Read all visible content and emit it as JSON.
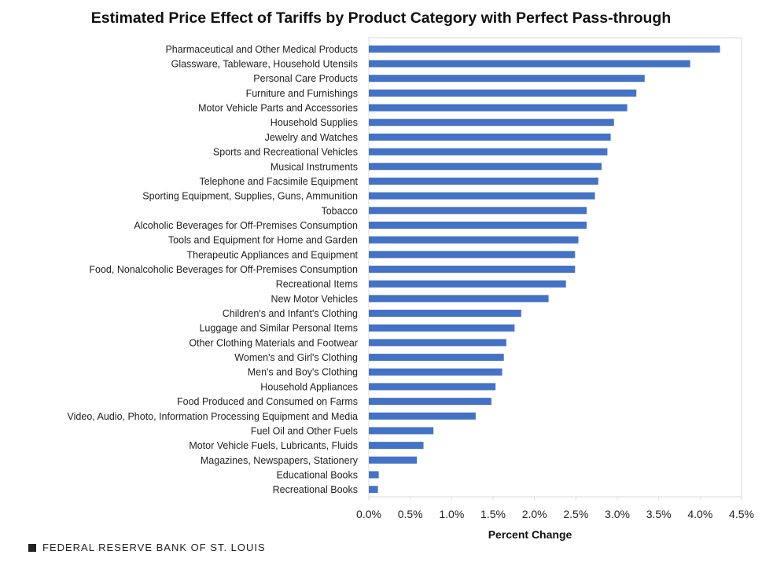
{
  "chart_data": {
    "type": "bar",
    "orientation": "horizontal",
    "title": "Estimated Price Effect of Tariffs by Product Category with Perfect Pass-through",
    "xlabel": "Percent Change",
    "ylabel": "",
    "xlim": [
      0,
      4.5
    ],
    "xticks": [
      "0.0%",
      "0.5%",
      "1.0%",
      "1.5%",
      "2.0%",
      "2.5%",
      "3.0%",
      "3.5%",
      "4.0%",
      "4.5%"
    ],
    "bar_color": "#4472C4",
    "categories": [
      "Pharmaceutical and Other Medical Products",
      "Glassware, Tableware, Household Utensils",
      "Personal Care Products",
      "Furniture and Furnishings",
      "Motor Vehicle Parts and Accessories",
      "Household Supplies",
      "Jewelry and Watches",
      "Sports and Recreational Vehicles",
      "Musical Instruments",
      "Telephone and Facsimile Equipment",
      "Sporting Equipment, Supplies, Guns, Ammunition",
      "Tobacco",
      "Alcoholic Beverages for Off-Premises Consumption",
      "Tools and Equipment for Home and Garden",
      "Therapeutic Appliances and Equipment",
      "Food, Nonalcoholic Beverages for Off-Premises Consumption",
      "Recreational Items",
      "New Motor Vehicles",
      "Children's and Infant's Clothing",
      "Luggage and Similar Personal Items",
      "Other Clothing Materials and Footwear",
      "Women's and Girl's Clothing",
      "Men's and Boy's Clothing",
      "Household Appliances",
      "Food Produced and Consumed on Farms",
      "Video, Audio, Photo, Information Processing Equipment and Media",
      "Fuel Oil and Other Fuels",
      "Motor Vehicle Fuels, Lubricants, Fluids",
      "Magazines, Newspapers, Stationery",
      "Educational Books",
      "Recreational Books"
    ],
    "values": [
      4.24,
      3.88,
      3.33,
      3.23,
      3.12,
      2.96,
      2.92,
      2.88,
      2.81,
      2.77,
      2.73,
      2.63,
      2.63,
      2.53,
      2.49,
      2.49,
      2.38,
      2.17,
      1.84,
      1.76,
      1.66,
      1.63,
      1.61,
      1.53,
      1.48,
      1.29,
      0.78,
      0.66,
      0.58,
      0.12,
      0.11
    ]
  },
  "footer": "FEDERAL RESERVE BANK OF ST. LOUIS"
}
